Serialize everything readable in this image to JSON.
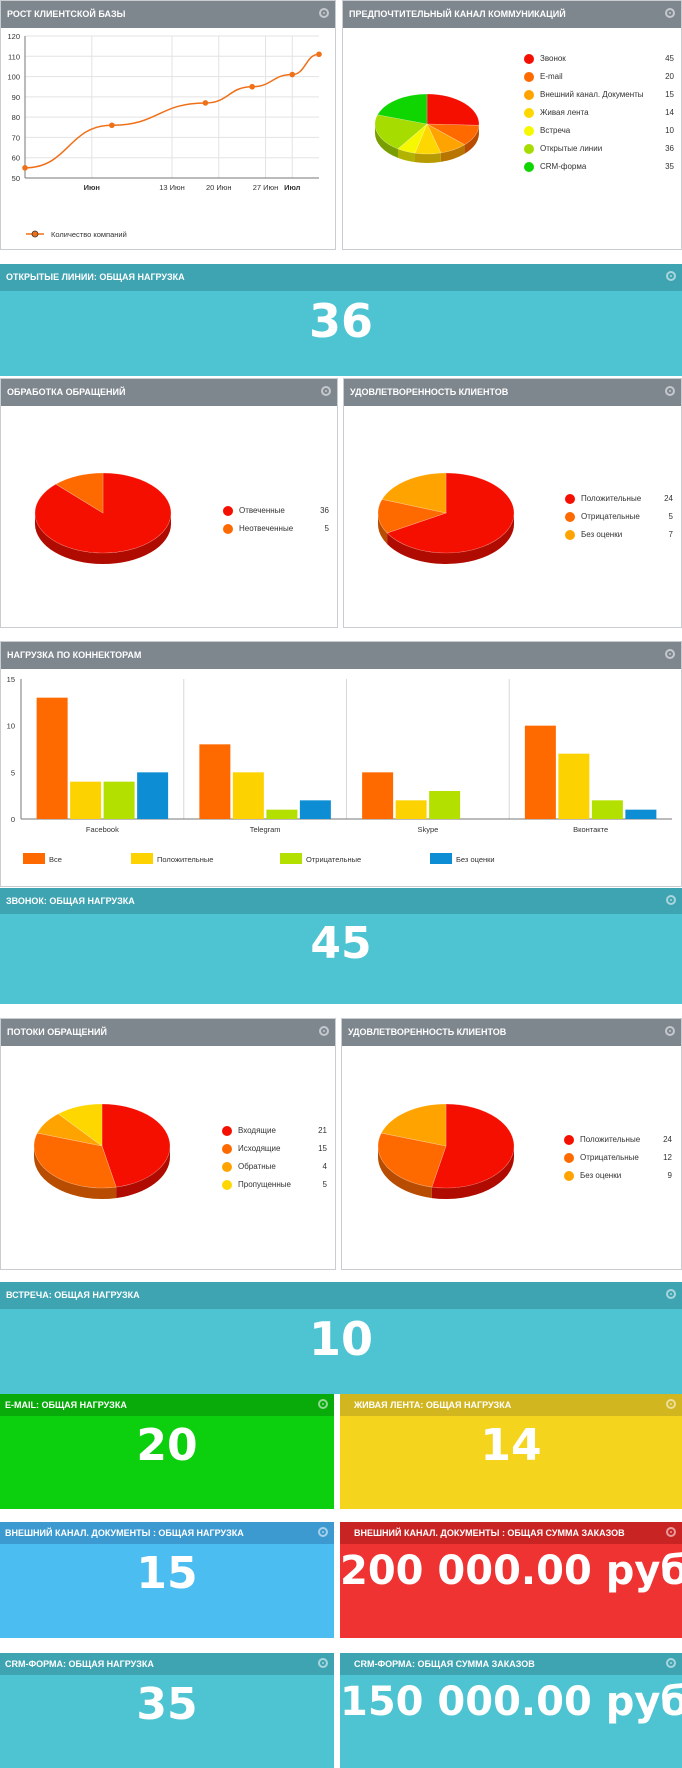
{
  "widgets": {
    "growth": {
      "title": "Рост клиентской базы",
      "legend": "Количество компаний"
    },
    "channel": {
      "title": "Предпочтительный канал коммуникаций"
    },
    "ol_total": {
      "title": "Открытые линии: общая нагрузка",
      "value": "36"
    },
    "processing": {
      "title": "Обработка обращений"
    },
    "satisfaction1": {
      "title": "Удовлетворенность клиентов"
    },
    "connectors": {
      "title": "Нагрузка по коннекторам"
    },
    "call_total": {
      "title": "Звонок: общая нагрузка",
      "value": "45"
    },
    "flows": {
      "title": "Потоки обращений"
    },
    "satisfaction2": {
      "title": "Удовлетворенность клиентов"
    },
    "meeting_total": {
      "title": "Встреча: общая нагрузка",
      "value": "10"
    },
    "email_total": {
      "title": "E-mail: общая нагрузка",
      "value": "20"
    },
    "live_total": {
      "title": "Живая лента: общая нагрузка",
      "value": "14"
    },
    "extdoc_total": {
      "title": "Внешний канал. Документы : общая нагрузка",
      "value": "15"
    },
    "extdoc_sum": {
      "title": "Внешний канал. Документы : общая сумма заказов",
      "value": "200 000.00 руб"
    },
    "crm_total": {
      "title": "CRM-форма: общая нагрузка",
      "value": "35"
    },
    "crm_sum": {
      "title": "CRM-форма: общая сумма заказов",
      "value": "150 000.00 руб"
    }
  },
  "colors": {
    "teal_header": "#3fa4b2",
    "teal_body": "#4ec4d3",
    "green_header": "#08ab0a",
    "green_body": "#0ccf0d",
    "yellow_header": "#d2b61f",
    "yellow_body": "#f5d41d",
    "blue_header": "#3c9ad1",
    "blue_body": "#4bbdf1",
    "red_header": "#c92424",
    "red_body": "#ef3232",
    "gray_header": "#7e868e"
  },
  "chart_data": [
    {
      "id": "growth",
      "type": "line",
      "x": [
        "2018-05-22",
        "2018-06-04",
        "2018-06-18",
        "2018-06-25",
        "2018-07-01",
        "2018-07-05"
      ],
      "series": [
        {
          "name": "Количество компаний",
          "values": [
            55,
            76,
            87,
            95,
            101,
            111
          ],
          "color": "#f07018"
        }
      ],
      "ylim": [
        50,
        120
      ],
      "yticks": [
        50,
        60,
        70,
        80,
        90,
        100,
        110,
        120
      ],
      "xtick_labels": [
        "Июн",
        "13 Июн",
        "20 Июн",
        "27 Июн",
        "Июл"
      ],
      "xtick_dates": [
        "2018-06-01",
        "2018-06-13",
        "2018-06-20",
        "2018-06-27",
        "2018-07-01"
      ],
      "xtick_bold": [
        true,
        false,
        false,
        false,
        true
      ],
      "xlim": [
        "2018-05-22",
        "2018-07-05"
      ],
      "grid": true,
      "legend": "bottom-left"
    },
    {
      "id": "channel",
      "type": "pie",
      "categories": [
        "Звонок",
        "E-mail",
        "Внешний канал. Документы",
        "Живая лента",
        "Встреча",
        "Открытые линии",
        "CRM-форма"
      ],
      "values": [
        45,
        20,
        15,
        14,
        10,
        36,
        35
      ],
      "colors": [
        "#f50f00",
        "#ff6a00",
        "#ffa300",
        "#ffd700",
        "#f6f800",
        "#a6dc00",
        "#0fd500"
      ],
      "legend": "right"
    },
    {
      "id": "processing",
      "type": "pie",
      "categories": [
        "Отвеченные",
        "Неотвеченные"
      ],
      "values": [
        36,
        5
      ],
      "colors": [
        "#f50f00",
        "#ff6a00"
      ],
      "legend": "right"
    },
    {
      "id": "satisfaction1",
      "type": "pie",
      "categories": [
        "Положительные",
        "Отрицательные",
        "Без оценки"
      ],
      "values": [
        24,
        5,
        7
      ],
      "colors": [
        "#f50f00",
        "#ff6a00",
        "#ffa300"
      ],
      "legend": "right"
    },
    {
      "id": "connectors",
      "type": "bar",
      "categories": [
        "Facebook",
        "Telegram",
        "Skype",
        "Вконтакте"
      ],
      "series": [
        {
          "name": "Все",
          "values": [
            13,
            8,
            5,
            10
          ],
          "color": "#ff6a00"
        },
        {
          "name": "Положительные",
          "values": [
            4,
            5,
            2,
            7
          ],
          "color": "#fcd200"
        },
        {
          "name": "Отрицательные",
          "values": [
            4,
            1,
            3,
            2
          ],
          "color": "#b4e000"
        },
        {
          "name": "Без оценки",
          "values": [
            5,
            2,
            0,
            1
          ],
          "color": "#0d8ed4"
        }
      ],
      "ylim": [
        0,
        15
      ],
      "yticks": [
        0,
        5,
        10,
        15
      ],
      "legend": "bottom"
    },
    {
      "id": "flows",
      "type": "pie",
      "categories": [
        "Входящие",
        "Исходящие",
        "Обратные",
        "Пропущенные"
      ],
      "values": [
        21,
        15,
        4,
        5
      ],
      "colors": [
        "#f50f00",
        "#ff6a00",
        "#ffa300",
        "#ffd700"
      ],
      "legend": "right"
    },
    {
      "id": "satisfaction2",
      "type": "pie",
      "categories": [
        "Положительные",
        "Отрицательные",
        "Без оценки"
      ],
      "values": [
        24,
        12,
        9
      ],
      "colors": [
        "#f50f00",
        "#ff6a00",
        "#ffa300"
      ],
      "legend": "right"
    }
  ]
}
